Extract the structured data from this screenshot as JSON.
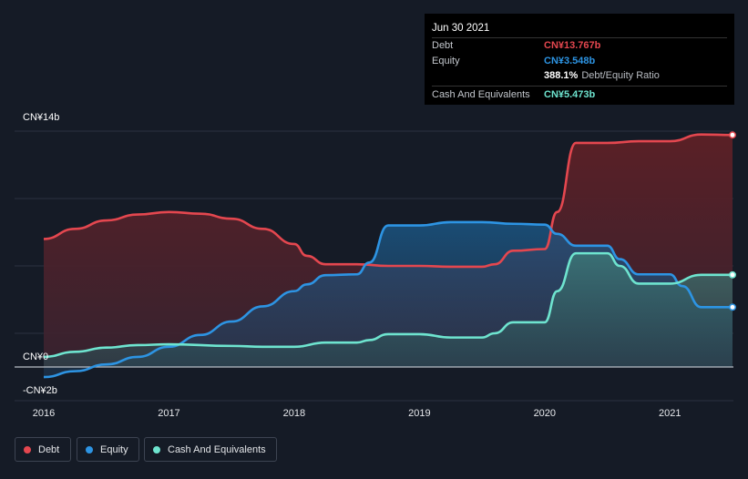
{
  "tooltip": {
    "date": "Jun 30 2021",
    "debt_label": "Debt",
    "debt_value": "CN¥13.767b",
    "equity_label": "Equity",
    "equity_value": "CN¥3.548b",
    "ratio_value": "388.1%",
    "ratio_label": "Debt/Equity Ratio",
    "cash_label": "Cash And Equivalents",
    "cash_value": "CN¥5.473b"
  },
  "legend": {
    "debt": "Debt",
    "equity": "Equity",
    "cash": "Cash And Equivalents"
  },
  "colors": {
    "debt": "#e4474f",
    "equity": "#2d94e3",
    "cash": "#6ee4cf",
    "debt_fill": "#5a1f24",
    "background": "#151b26"
  },
  "chart_data": {
    "type": "area",
    "title": "",
    "xlabel": "",
    "ylabel": "",
    "ylim": [
      -2,
      14
    ],
    "y_tick_labels": [
      {
        "value": 14,
        "label": "CN¥14b"
      },
      {
        "value": 0,
        "label": "CN¥0"
      },
      {
        "value": -2,
        "label": "-CN¥2b"
      }
    ],
    "x_ticks": [
      {
        "value": 2016,
        "label": "2016"
      },
      {
        "value": 2017,
        "label": "2017"
      },
      {
        "value": 2018,
        "label": "2018"
      },
      {
        "value": 2019,
        "label": "2019"
      },
      {
        "value": 2020,
        "label": "2020"
      },
      {
        "value": 2021,
        "label": "2021"
      }
    ],
    "xlim": [
      2015.77,
      2021.5
    ],
    "series": [
      {
        "name": "Debt",
        "points": [
          [
            2016.0,
            7.6
          ],
          [
            2016.25,
            8.2
          ],
          [
            2016.5,
            8.7
          ],
          [
            2016.75,
            9.05
          ],
          [
            2017.0,
            9.2
          ],
          [
            2017.25,
            9.1
          ],
          [
            2017.5,
            8.8
          ],
          [
            2017.75,
            8.2
          ],
          [
            2018.0,
            7.3
          ],
          [
            2018.1,
            6.6
          ],
          [
            2018.25,
            6.1
          ],
          [
            2018.5,
            6.1
          ],
          [
            2018.75,
            6.0
          ],
          [
            2019.0,
            6.0
          ],
          [
            2019.25,
            5.95
          ],
          [
            2019.5,
            5.95
          ],
          [
            2019.6,
            6.1
          ],
          [
            2019.75,
            6.9
          ],
          [
            2020.0,
            7.0
          ],
          [
            2020.1,
            9.2
          ],
          [
            2020.25,
            13.3
          ],
          [
            2020.5,
            13.3
          ],
          [
            2020.75,
            13.4
          ],
          [
            2021.0,
            13.4
          ],
          [
            2021.25,
            13.8
          ],
          [
            2021.5,
            13.77
          ]
        ]
      },
      {
        "name": "Equity",
        "points": [
          [
            2016.0,
            -0.6
          ],
          [
            2016.25,
            -0.25
          ],
          [
            2016.5,
            0.15
          ],
          [
            2016.75,
            0.6
          ],
          [
            2017.0,
            1.2
          ],
          [
            2017.25,
            1.9
          ],
          [
            2017.5,
            2.7
          ],
          [
            2017.75,
            3.6
          ],
          [
            2018.0,
            4.5
          ],
          [
            2018.1,
            4.9
          ],
          [
            2018.25,
            5.45
          ],
          [
            2018.5,
            5.5
          ],
          [
            2018.6,
            6.2
          ],
          [
            2018.75,
            8.4
          ],
          [
            2019.0,
            8.4
          ],
          [
            2019.25,
            8.6
          ],
          [
            2019.5,
            8.6
          ],
          [
            2019.75,
            8.5
          ],
          [
            2020.0,
            8.45
          ],
          [
            2020.1,
            7.9
          ],
          [
            2020.25,
            7.2
          ],
          [
            2020.5,
            7.2
          ],
          [
            2020.6,
            6.4
          ],
          [
            2020.75,
            5.5
          ],
          [
            2021.0,
            5.5
          ],
          [
            2021.1,
            4.8
          ],
          [
            2021.25,
            3.55
          ],
          [
            2021.5,
            3.55
          ]
        ]
      },
      {
        "name": "Cash And Equivalents",
        "points": [
          [
            2016.0,
            0.6
          ],
          [
            2016.25,
            0.9
          ],
          [
            2016.5,
            1.15
          ],
          [
            2016.75,
            1.3
          ],
          [
            2017.0,
            1.35
          ],
          [
            2017.5,
            1.25
          ],
          [
            2017.75,
            1.2
          ],
          [
            2018.0,
            1.2
          ],
          [
            2018.25,
            1.45
          ],
          [
            2018.5,
            1.45
          ],
          [
            2018.6,
            1.6
          ],
          [
            2018.75,
            1.95
          ],
          [
            2019.0,
            1.95
          ],
          [
            2019.25,
            1.75
          ],
          [
            2019.5,
            1.75
          ],
          [
            2019.6,
            2.0
          ],
          [
            2019.75,
            2.65
          ],
          [
            2020.0,
            2.65
          ],
          [
            2020.1,
            4.5
          ],
          [
            2020.25,
            6.75
          ],
          [
            2020.5,
            6.75
          ],
          [
            2020.6,
            6.0
          ],
          [
            2020.75,
            4.95
          ],
          [
            2021.0,
            4.95
          ],
          [
            2021.25,
            5.47
          ],
          [
            2021.5,
            5.47
          ]
        ]
      }
    ]
  }
}
